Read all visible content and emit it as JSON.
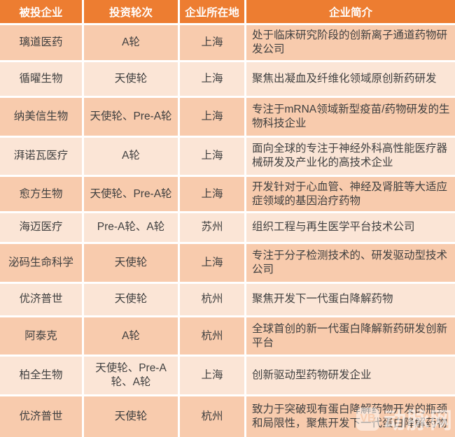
{
  "chart_data": {
    "type": "table",
    "title": "",
    "columns": [
      "被投企业",
      "投资轮次",
      "企业所在地",
      "企业简介"
    ],
    "rows": [
      {
        "company": "璃道医药",
        "round": "A轮",
        "location": "上海",
        "profile": "处于临床研究阶段的创新离子通道药物研发公司"
      },
      {
        "company": "循曜生物",
        "round": "天使轮",
        "location": "上海",
        "profile": "聚焦出凝血及纤维化领域原创新药研发"
      },
      {
        "company": "纳美信生物",
        "round": "天使轮、Pre-A轮",
        "location": "上海",
        "profile": "专注于mRNA领域新型疫苗/药物研发的生物科技企业"
      },
      {
        "company": "湃诺瓦医疗",
        "round": "A轮",
        "location": "上海",
        "profile": "面向全球的专注于神经外科高性能医疗器械研发及产业化的高技术企业"
      },
      {
        "company": "愈方生物",
        "round": "天使轮、Pre-A轮",
        "location": "上海",
        "profile": "开发针对于心血管、神经及肾脏等大适应症领域的基因治疗药物"
      },
      {
        "company": "海迈医疗",
        "round": "Pre-A轮、A轮",
        "location": "苏州",
        "profile": "组织工程与再生医学平台技术公司"
      },
      {
        "company": "泌码生命科学",
        "round": "天使轮",
        "location": "上海",
        "profile": "专注于分子检测技术的、研发驱动型技术公司"
      },
      {
        "company": "优济普世",
        "round": "天使轮",
        "location": "杭州",
        "profile": "聚焦开发下一代蛋白降解药物"
      },
      {
        "company": "阿泰克",
        "round": "A轮",
        "location": "杭州",
        "profile": "全球首创的新一代蛋白降解新药研发创新平台"
      },
      {
        "company": "柏全生物",
        "round": "天使轮、Pre-A轮、A轮",
        "location": "上海",
        "profile": "创新驱动型药物研发企业"
      },
      {
        "company": "优济普世",
        "round": "天使轮",
        "location": "杭州",
        "profile": "致力于突破现有蛋白降解药物开发的瓶颈和局限性，聚焦开发下一代蛋白降解药物"
      }
    ],
    "layout_hints": {
      "striped": true,
      "stripe_order": "dark-first",
      "grid": "white 3px lines"
    }
  },
  "watermark": {
    "logo_text": "VB",
    "text": "动脉网"
  },
  "colors": {
    "header_bg": "#ED7D31",
    "header_text": "#FFFFFF",
    "row_dark": "#F8CBAD",
    "row_light": "#FBE5D6",
    "body_text": "#3F3F3F",
    "grid": "#FFFFFF"
  }
}
